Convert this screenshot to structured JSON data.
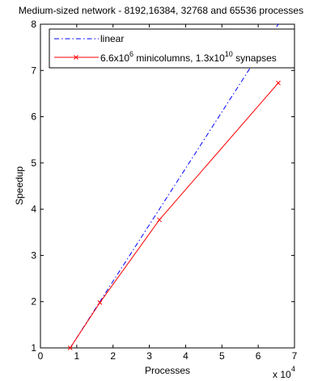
{
  "chart_data": {
    "type": "line",
    "title": "Medium-sized network - 8192,16384, 32768 and 65536 processes",
    "xlabel": "Processes",
    "ylabel": "Speedup",
    "x_multiplier_label": "x 10",
    "x_multiplier_exp": "4",
    "xlim": [
      0,
      7
    ],
    "ylim": [
      1,
      8
    ],
    "xticks": [
      0,
      1,
      2,
      3,
      4,
      5,
      6,
      7
    ],
    "yticks": [
      1,
      2,
      3,
      4,
      5,
      6,
      7,
      8
    ],
    "grid": false,
    "legend_position": "top-left",
    "series": [
      {
        "name": "linear",
        "color": "#0000ff",
        "style": "dash-dot",
        "marker": "none",
        "x": [
          0.8192,
          1.6384,
          3.2768,
          6.5536
        ],
        "y": [
          1,
          2,
          4,
          8
        ]
      },
      {
        "name": "minicolumns synapses",
        "legend_parts": [
          "6.6x10",
          "6",
          " minicolumns, 1.3x10",
          "10",
          " synapses"
        ],
        "color": "#ff0000",
        "style": "solid",
        "marker": "x",
        "x": [
          0.8192,
          1.6384,
          3.2768,
          6.5536
        ],
        "y": [
          1,
          1.98,
          3.77,
          6.73
        ]
      }
    ]
  }
}
